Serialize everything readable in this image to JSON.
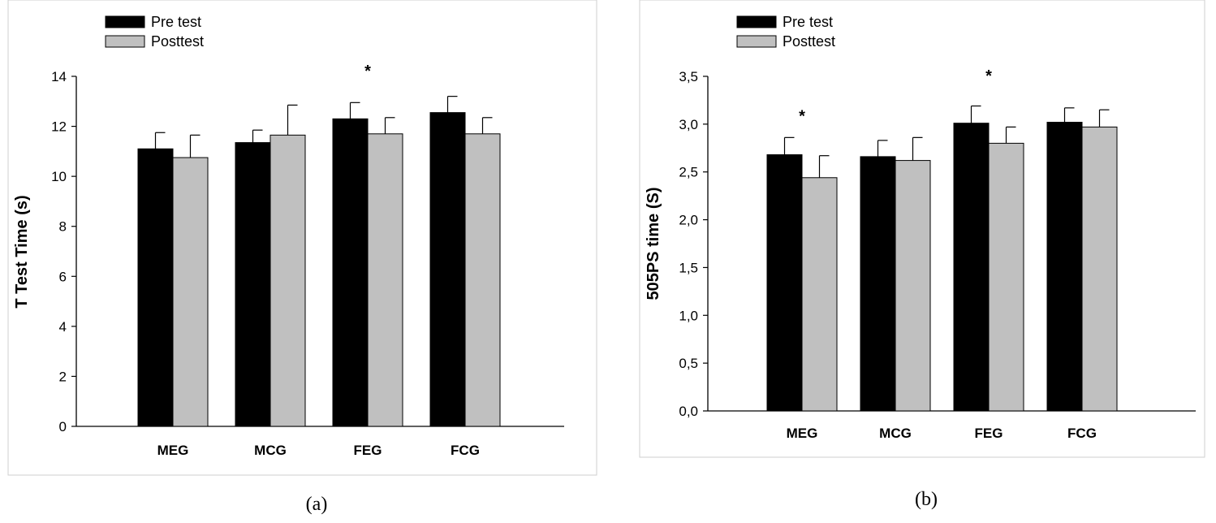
{
  "chart_data": [
    {
      "type": "bar",
      "caption": "(a)",
      "title": "",
      "xlabel": "",
      "ylabel": "T Test Time (s)",
      "ylim": [
        0,
        14
      ],
      "yticks": [
        "0",
        "2",
        "4",
        "6",
        "8",
        "10",
        "12",
        "14"
      ],
      "categories": [
        "MEG",
        "MCG",
        "FEG",
        "FCG"
      ],
      "series": [
        {
          "name": "Pre test",
          "color": "#000000",
          "values": [
            11.1,
            11.35,
            12.3,
            12.55
          ],
          "errors": [
            0.65,
            0.5,
            0.65,
            0.65
          ]
        },
        {
          "name": "Posttest",
          "color": "#c0c0c0",
          "values": [
            10.75,
            11.65,
            11.7,
            11.7
          ],
          "errors": [
            0.9,
            1.2,
            0.65,
            0.65
          ]
        }
      ],
      "annotations": [
        {
          "category": "FEG",
          "text": "*",
          "y": 14.2
        }
      ],
      "legend": "top-left"
    },
    {
      "type": "bar",
      "caption": "(b)",
      "title": "",
      "xlabel": "",
      "ylabel": "505PS time (S)",
      "ylim": [
        0,
        3.5
      ],
      "yticks": [
        "0,0",
        "0,5",
        "1,0",
        "1,5",
        "2,0",
        "2,5",
        "3,0",
        "3,5"
      ],
      "categories": [
        "MEG",
        "MCG",
        "FEG",
        "FCG"
      ],
      "series": [
        {
          "name": "Pre test",
          "color": "#000000",
          "values": [
            2.68,
            2.66,
            3.01,
            3.02
          ],
          "errors": [
            0.18,
            0.17,
            0.18,
            0.15
          ]
        },
        {
          "name": "Posttest",
          "color": "#c0c0c0",
          "values": [
            2.44,
            2.62,
            2.8,
            2.97
          ],
          "errors": [
            0.23,
            0.24,
            0.17,
            0.18
          ]
        }
      ],
      "annotations": [
        {
          "category": "MEG",
          "text": "*",
          "y": 3.08
        },
        {
          "category": "FEG",
          "text": "*",
          "y": 3.5
        }
      ],
      "legend": "top-left"
    }
  ]
}
